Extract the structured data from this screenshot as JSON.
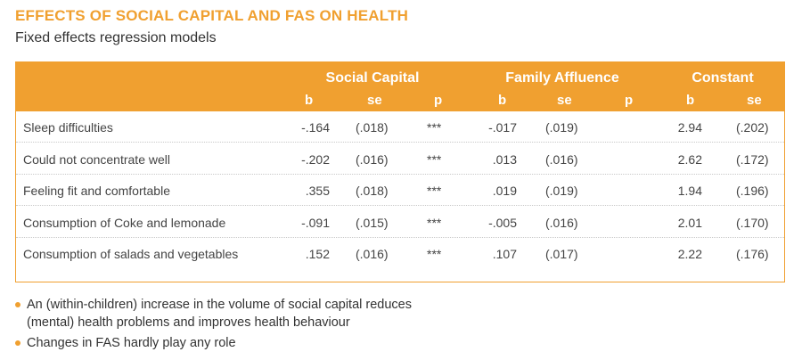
{
  "title": "EFFECTS OF SOCIAL CAPITAL AND FAS ON HEALTH",
  "subtitle": "Fixed effects regression models",
  "table": {
    "groups": {
      "social_capital": "Social Capital",
      "family_affluence": "Family Affluence",
      "constant": "Constant"
    },
    "subheaders": {
      "sc_b": "b",
      "sc_se": "se",
      "sc_p": "p",
      "fa_b": "b",
      "fa_se": "se",
      "fa_p": "p",
      "c_b": "b",
      "c_se": "se"
    },
    "rows": [
      {
        "label": "Sleep difficulties",
        "sc_b": "-.164",
        "sc_se": "(.018)",
        "sc_p": "***",
        "fa_b": "-.017",
        "fa_se": "(.019)",
        "fa_p": "",
        "c_b": "2.94",
        "c_se": "(.202)"
      },
      {
        "label": "Could not concentrate well",
        "sc_b": "-.202",
        "sc_se": "(.016)",
        "sc_p": "***",
        "fa_b": ".013",
        "fa_se": "(.016)",
        "fa_p": "",
        "c_b": "2.62",
        "c_se": "(.172)"
      },
      {
        "label": "Feeling fit and comfortable",
        "sc_b": ".355",
        "sc_se": "(.018)",
        "sc_p": "***",
        "fa_b": ".019",
        "fa_se": "(.019)",
        "fa_p": "",
        "c_b": "1.94",
        "c_se": "(.196)"
      },
      {
        "label": "Consumption of Coke and lemonade",
        "sc_b": "-.091",
        "sc_se": "(.015)",
        "sc_p": "***",
        "fa_b": "-.005",
        "fa_se": "(.016)",
        "fa_p": "",
        "c_b": "2.01",
        "c_se": "(.170)"
      },
      {
        "label": "Consumption of salads and vegetables",
        "sc_b": ".152",
        "sc_se": "(.016)",
        "sc_p": "***",
        "fa_b": ".107",
        "fa_se": "(.017)",
        "fa_p": "",
        "c_b": "2.22",
        "c_se": "(.176)"
      }
    ]
  },
  "bullets": [
    "An (within-children) increase in the volume of social capital reduces",
    "(mental) health problems and improves health behaviour",
    "Changes in FAS hardly play any role"
  ],
  "colors": {
    "accent": "#f0a030"
  }
}
